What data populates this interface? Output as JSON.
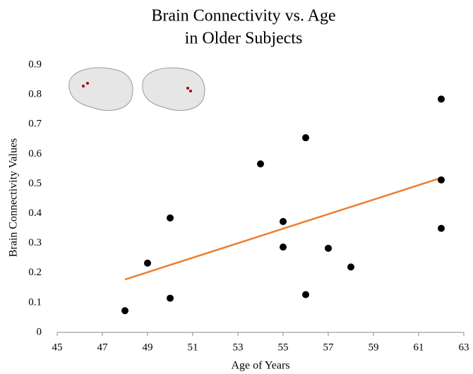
{
  "chart_data": {
    "type": "scatter",
    "title": [
      "Brain Connectivity vs. Age",
      "in Older Subjects"
    ],
    "x_label": "Age of Years",
    "y_label": "Brain Connectivity Values",
    "x": [
      48,
      49,
      50,
      50,
      54,
      55,
      55,
      56,
      56,
      57,
      58,
      62,
      62,
      62
    ],
    "values": [
      0.073,
      0.233,
      0.115,
      0.385,
      0.567,
      0.373,
      0.287,
      0.655,
      0.127,
      0.283,
      0.22,
      0.785,
      0.513,
      0.35
    ],
    "color": "#000000",
    "trendline": {
      "x": [
        48,
        62
      ],
      "values": [
        0.178,
        0.52
      ],
      "color": "#ed7d31"
    },
    "xlim": [
      45,
      63
    ],
    "xticks": [
      45,
      47,
      49,
      51,
      53,
      55,
      57,
      59,
      61,
      63
    ],
    "ylim": [
      0,
      0.9
    ],
    "yticks": [
      0,
      0.1,
      0.2,
      0.3,
      0.4,
      0.5,
      0.6,
      0.7,
      0.8,
      0.9
    ],
    "grid": false
  }
}
